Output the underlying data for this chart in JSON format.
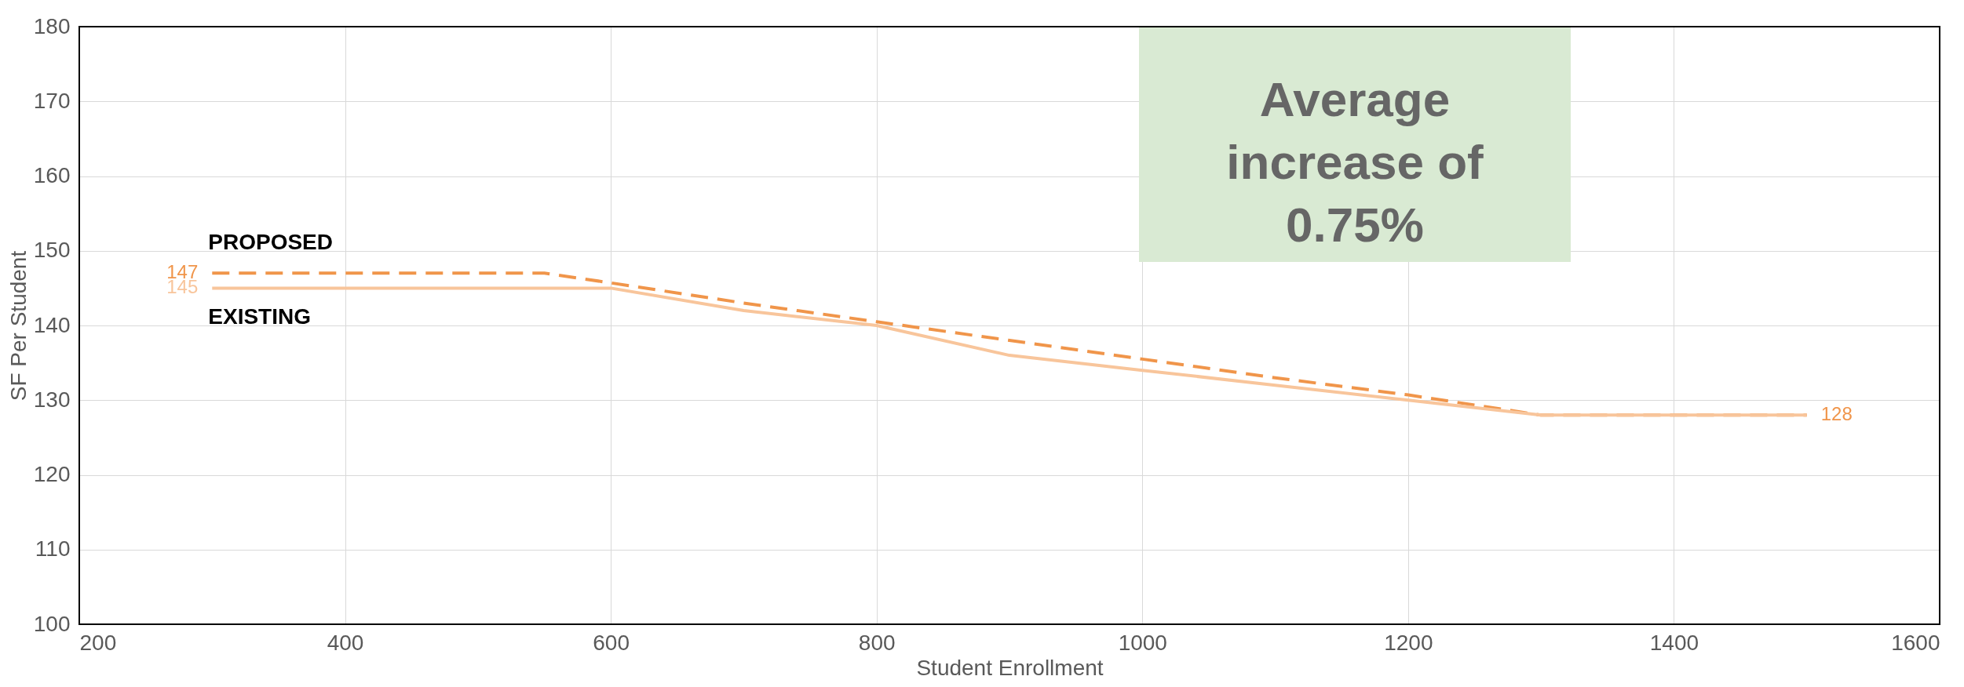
{
  "chart_data": {
    "type": "line",
    "xlabel": "Student Enrollment",
    "ylabel": "SF Per Student",
    "xlim": [
      200,
      1600
    ],
    "xticks": [
      200,
      400,
      600,
      800,
      1000,
      1200,
      1400,
      1600
    ],
    "ylim": [
      100,
      180
    ],
    "yticks": [
      100,
      110,
      120,
      130,
      140,
      150,
      160,
      170,
      180
    ],
    "grid": true,
    "legend": false,
    "annotations": [
      "Average\nincrease of\n0.75%"
    ],
    "series": [
      {
        "name": "PROPOSED",
        "color": "#f0954a",
        "line_style": "dashed",
        "x": [
          300,
          550,
          600,
          700,
          800,
          900,
          1000,
          1100,
          1200,
          1300,
          1500
        ],
        "values": [
          147,
          147,
          145.7,
          143,
          140.5,
          138,
          135.5,
          133,
          130.7,
          128,
          128
        ],
        "value_labels": [
          "147",
          null,
          null,
          null,
          null,
          null,
          null,
          null,
          null,
          null,
          "128"
        ]
      },
      {
        "name": "EXISTING",
        "color": "#f8c59b",
        "line_style": "solid",
        "x": [
          300,
          600,
          700,
          800,
          900,
          1000,
          1100,
          1200,
          1300,
          1400,
          1500
        ],
        "values": [
          145,
          145,
          142,
          140,
          136,
          134,
          132,
          130,
          128,
          128,
          128
        ],
        "value_labels": [
          "145",
          null,
          null,
          null,
          null,
          null,
          null,
          null,
          null,
          null,
          null
        ]
      }
    ]
  }
}
